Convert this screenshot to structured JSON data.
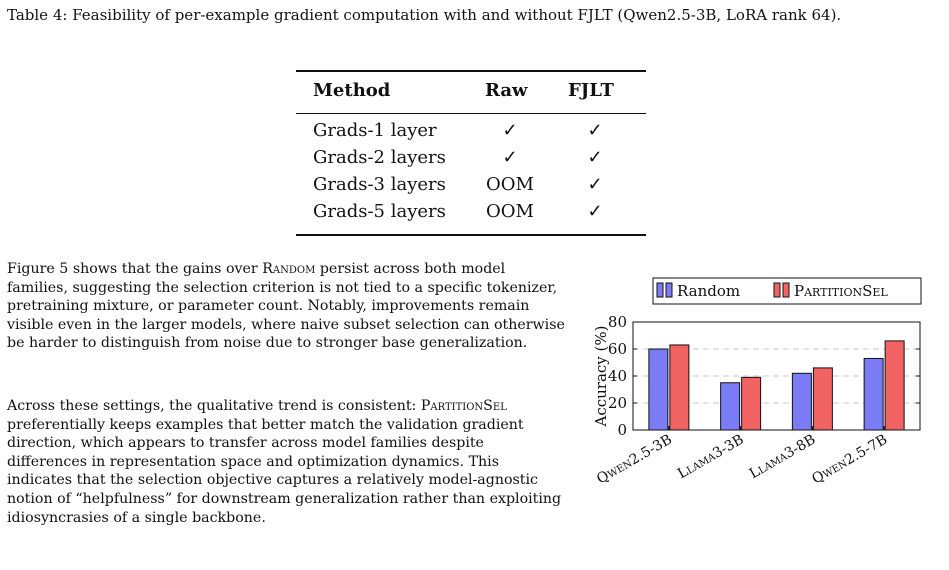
{
  "caption": "Table 4: Feasibility of per-example gradient computation with and without FJLT (Qwen2.5-3B, LoRA rank 64).",
  "table": {
    "headers": [
      "Method",
      "Raw",
      "FJLT"
    ],
    "rows": [
      [
        "Grads-1 layer",
        "✓",
        "✓"
      ],
      [
        "Grads-2 layers",
        "✓",
        "✓"
      ],
      [
        "Grads-3 layers",
        "OOM",
        "✓"
      ],
      [
        "Grads-5 layers",
        "OOM",
        "✓"
      ]
    ]
  },
  "paragraphs": {
    "p1_before": "Figure 5 shows that the gains over ",
    "p1_sc": "Random",
    "p1_after": " persist across both model families, suggesting the selection criterion is not tied to a specific tokenizer, pretraining mixture, or parameter count. Notably, improvements remain visible even in the larger models, where naive subset selection can otherwise be harder to distinguish from noise due to stronger base generalization.",
    "p2_before": "Across these settings, the qualitative trend is consistent: ",
    "p2_sc": "PartitionSel",
    "p2_after": " preferentially keeps examples that better match the validation gradient direction, which appears to transfer across model families despite differences in representation space and optimization dynamics. This indicates that the selection objective captures a relatively model-agnostic notion of “helpfulness” for downstream generalization rather than exploiting idiosyncrasies of a single backbone."
  },
  "chart_data": {
    "type": "bar",
    "categories": [
      "Qwen2.5-3B",
      "Llama3-3B",
      "Llama3-8B",
      "Qwen2.5-7B"
    ],
    "series": [
      {
        "name": "Random",
        "values": [
          60,
          35,
          42,
          53
        ],
        "color": "#7b7bf5"
      },
      {
        "name": "PartitionSel",
        "values": [
          63,
          39,
          46,
          66
        ],
        "color": "#f26464"
      }
    ],
    "ylabel": "Accuracy (%)",
    "xlabel": "",
    "title": "",
    "ylim": [
      0,
      80
    ],
    "yticks": [
      0,
      20,
      40,
      60,
      80
    ],
    "grid": true,
    "legend": "top"
  }
}
